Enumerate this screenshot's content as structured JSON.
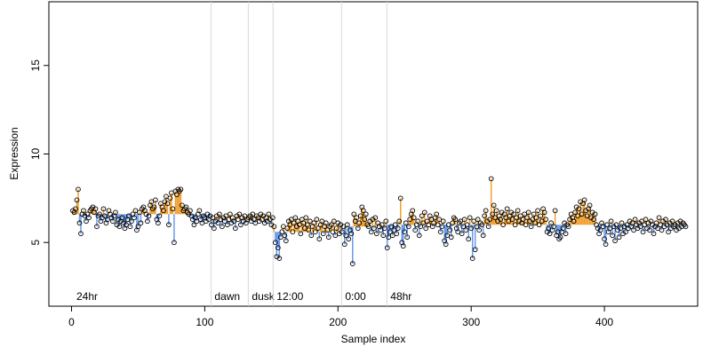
{
  "chart_data": {
    "type": "stem-scatter",
    "x_label": "Sample index",
    "y_label": "Expression",
    "xlim": [
      -17,
      470
    ],
    "ylim": [
      1.4,
      18.6
    ],
    "xticks": [
      0,
      100,
      200,
      300,
      400
    ],
    "yticks": [
      5,
      10,
      15
    ],
    "above_color": "#f0a030",
    "below_color": "#6a9be8",
    "point_color": "#000000",
    "divider_color": "#d9d9d9",
    "segment_label_color": "#a6a6a6",
    "segments": [
      {
        "label": "24hr",
        "start": 1,
        "baseline": 6.6
      },
      {
        "label": "dawn",
        "start": 104.7,
        "baseline": 6.3
      },
      {
        "label": "dusk",
        "start": 132.7,
        "baseline": 6.3
      },
      {
        "label": "12:00",
        "start": 151.3,
        "baseline": 5.6
      },
      {
        "label": "0:00",
        "start": 202.7,
        "baseline": 5.9
      },
      {
        "label": "48hr",
        "start": 236.7,
        "baseline": 6.0
      }
    ],
    "series": [
      {
        "name": "Expression",
        "x": [
          1,
          2,
          3,
          4,
          5,
          6,
          7,
          8,
          9,
          10,
          11,
          12,
          13,
          14,
          15,
          16,
          17,
          18,
          19,
          20,
          21,
          22,
          23,
          24,
          25,
          26,
          27,
          28,
          29,
          30,
          31,
          32,
          33,
          34,
          35,
          36,
          37,
          38,
          39,
          40,
          41,
          42,
          43,
          44,
          45,
          46,
          47,
          48,
          49,
          50,
          51,
          52,
          53,
          54,
          55,
          56,
          57,
          58,
          59,
          60,
          61,
          62,
          63,
          64,
          65,
          66,
          67,
          68,
          69,
          70,
          71,
          72,
          73,
          74,
          75,
          76,
          77,
          78,
          79,
          80,
          81,
          82,
          83,
          84,
          85,
          86,
          87,
          88,
          89,
          90,
          91,
          92,
          93,
          94,
          95,
          96,
          97,
          98,
          99,
          100,
          101,
          102,
          103,
          104,
          105,
          106,
          107,
          108,
          109,
          110,
          111,
          112,
          113,
          114,
          115,
          116,
          117,
          118,
          119,
          120,
          121,
          122,
          123,
          124,
          125,
          126,
          127,
          128,
          129,
          130,
          131,
          132,
          133,
          134,
          135,
          136,
          137,
          138,
          139,
          140,
          141,
          142,
          143,
          144,
          145,
          146,
          147,
          148,
          149,
          150,
          151,
          152,
          153,
          154,
          155,
          156,
          157,
          158,
          159,
          160,
          161,
          162,
          163,
          164,
          165,
          166,
          167,
          168,
          169,
          170,
          171,
          172,
          173,
          174,
          175,
          176,
          177,
          178,
          179,
          180,
          181,
          182,
          183,
          184,
          185,
          186,
          187,
          188,
          189,
          190,
          191,
          192,
          193,
          194,
          195,
          196,
          197,
          198,
          199,
          200,
          201,
          202,
          203,
          204,
          205,
          206,
          207,
          208,
          209,
          210,
          211,
          212,
          213,
          214,
          215,
          216,
          217,
          218,
          219,
          220,
          221,
          222,
          223,
          224,
          225,
          226,
          227,
          228,
          229,
          230,
          231,
          232,
          233,
          234,
          235,
          236,
          237,
          238,
          239,
          240,
          241,
          242,
          243,
          244,
          245,
          246,
          247,
          248,
          249,
          250,
          251,
          252,
          253,
          254,
          255,
          256,
          257,
          258,
          259,
          260,
          261,
          262,
          263,
          264,
          265,
          266,
          267,
          268,
          269,
          270,
          271,
          272,
          273,
          274,
          275,
          276,
          277,
          278,
          279,
          280,
          281,
          282,
          283,
          284,
          285,
          286,
          287,
          288,
          289,
          290,
          291,
          292,
          293,
          294,
          295,
          296,
          297,
          298,
          299,
          300,
          301,
          302,
          303,
          304,
          305,
          306,
          307,
          308,
          309,
          310,
          311,
          312,
          313,
          314,
          315,
          316,
          317,
          318,
          319,
          320,
          321,
          322,
          323,
          324,
          325,
          326,
          327,
          328,
          329,
          330,
          331,
          332,
          333,
          334,
          335,
          336,
          337,
          338,
          339,
          340,
          341,
          342,
          343,
          344,
          345,
          346,
          347,
          348,
          349,
          350,
          351,
          352,
          353,
          354,
          355,
          356,
          357,
          358,
          359,
          360,
          361,
          362,
          363,
          364,
          365,
          366,
          367,
          368,
          369,
          370,
          371,
          372,
          373,
          374,
          375,
          376,
          377,
          378,
          379,
          380,
          381,
          382,
          383,
          384,
          385,
          386,
          387,
          388,
          389,
          390,
          391,
          392,
          393,
          394,
          395,
          396,
          397,
          398,
          399,
          400,
          401,
          402,
          403,
          404,
          405,
          406,
          407,
          408,
          409,
          410,
          411,
          412,
          413,
          414,
          415,
          416,
          417,
          418,
          419,
          420,
          421,
          422,
          423,
          424,
          425,
          426,
          427,
          428,
          429,
          430,
          431,
          432,
          433,
          434,
          435,
          436,
          437,
          438,
          439,
          440,
          441,
          442,
          443,
          444,
          445,
          446,
          447,
          448,
          449,
          450,
          451,
          452,
          453,
          454,
          455,
          456,
          457,
          458,
          459,
          460,
          461
        ],
        "values": [
          6.8,
          6.7,
          6.9,
          7.4,
          8.0,
          6.1,
          5.5,
          6.6,
          6.8,
          6.5,
          6.2,
          6.6,
          6.4,
          6.8,
          6.9,
          7.0,
          6.7,
          6.9,
          5.9,
          6.5,
          6.6,
          6.2,
          6.4,
          6.9,
          6.5,
          6.1,
          6.3,
          6.8,
          6.6,
          6.4,
          6.2,
          6.5,
          6.7,
          6.0,
          6.3,
          5.9,
          6.2,
          6.4,
          6.1,
          5.8,
          6.0,
          6.3,
          6.5,
          5.9,
          6.2,
          6.6,
          6.4,
          6.8,
          5.7,
          5.9,
          6.7,
          6.1,
          6.9,
          7.0,
          6.8,
          6.6,
          6.2,
          6.5,
          7.1,
          7.3,
          6.9,
          7.0,
          7.4,
          6.3,
          6.1,
          6.5,
          7.2,
          7.0,
          6.8,
          7.3,
          7.6,
          7.2,
          6.0,
          7.5,
          7.8,
          6.9,
          5.0,
          7.9,
          7.7,
          8.0,
          7.9,
          8.0,
          7.1,
          6.8,
          6.9,
          7.0,
          6.7,
          6.6,
          6.8,
          6.5,
          6.3,
          6.0,
          6.4,
          6.2,
          6.6,
          6.8,
          6.3,
          6.1,
          6.5,
          6.4,
          6.2,
          6.6,
          6.3,
          6.5,
          6.0,
          6.4,
          5.8,
          6.2,
          6.5,
          6.1,
          6.6,
          6.3,
          5.9,
          6.4,
          6.2,
          6.5,
          6.0,
          6.3,
          6.6,
          6.1,
          6.4,
          6.2,
          5.8,
          6.5,
          6.3,
          6.6,
          6.0,
          6.4,
          6.2,
          6.5,
          6.1,
          6.3,
          6.4,
          6.5,
          6.2,
          6.6,
          6.3,
          6.1,
          6.5,
          6.4,
          6.2,
          6.6,
          6.3,
          6.5,
          6.1,
          6.4,
          6.2,
          6.6,
          6.3,
          6.0,
          6.4,
          5.9,
          5.0,
          4.2,
          4.7,
          4.1,
          5.3,
          5.6,
          5.9,
          5.4,
          5.1,
          5.8,
          6.2,
          6.0,
          6.3,
          5.6,
          6.1,
          6.4,
          5.9,
          6.2,
          6.0,
          5.5,
          6.3,
          6.1,
          5.8,
          6.4,
          6.0,
          5.7,
          6.2,
          5.4,
          5.9,
          6.1,
          5.6,
          6.3,
          5.8,
          5.2,
          6.0,
          6.2,
          5.5,
          5.9,
          6.1,
          5.7,
          5.3,
          5.9,
          6.0,
          5.6,
          6.2,
          5.4,
          5.8,
          6.1,
          5.5,
          6.0,
          5.6,
          5.9,
          4.9,
          5.4,
          6.0,
          5.2,
          5.7,
          5.5,
          3.8,
          6.6,
          6.2,
          6.4,
          5.8,
          6.1,
          6.5,
          7.0,
          6.8,
          6.3,
          6.6,
          6.0,
          5.9,
          6.2,
          5.6,
          6.3,
          5.8,
          6.4,
          5.5,
          6.1,
          5.9,
          5.7,
          6.0,
          5.4,
          5.8,
          6.2,
          4.7,
          5.3,
          5.6,
          5.9,
          5.4,
          5.7,
          6.0,
          5.5,
          5.8,
          6.2,
          7.5,
          5.0,
          4.8,
          5.6,
          6.1,
          5.3,
          5.9,
          6.3,
          6.6,
          6.8,
          6.4,
          5.7,
          6.0,
          6.2,
          5.4,
          5.9,
          6.5,
          6.1,
          6.7,
          5.8,
          6.2,
          6.0,
          6.5,
          6.3,
          5.9,
          6.1,
          6.4,
          6.6,
          6.0,
          6.3,
          5.6,
          5.9,
          6.2,
          5.1,
          4.9,
          5.4,
          6.0,
          5.7,
          5.3,
          6.1,
          6.4,
          6.3,
          5.8,
          5.6,
          6.1,
          6.2,
          5.5,
          5.9,
          6.3,
          5.7,
          6.0,
          5.2,
          6.4,
          5.8,
          4.1,
          6.2,
          4.6,
          5.9,
          6.3,
          5.7,
          6.1,
          6.0,
          5.4,
          6.5,
          6.8,
          6.2,
          5.9,
          6.3,
          8.6,
          6.6,
          7.1,
          6.4,
          6.8,
          6.2,
          6.5,
          6.3,
          6.7,
          6.0,
          6.6,
          6.4,
          6.9,
          6.2,
          6.5,
          6.7,
          6.3,
          6.6,
          6.0,
          6.4,
          6.8,
          6.2,
          6.5,
          6.1,
          6.3,
          6.6,
          6.0,
          6.4,
          6.7,
          6.2,
          5.9,
          6.3,
          6.6,
          6.1,
          6.4,
          6.8,
          6.0,
          6.5,
          6.2,
          6.9,
          6.7,
          6.3,
          5.6,
          5.8,
          5.5,
          6.1,
          5.7,
          5.9,
          6.8,
          5.4,
          5.6,
          5.2,
          5.3,
          5.6,
          5.8,
          6.1,
          5.5,
          6.0,
          5.9,
          6.3,
          6.6,
          6.4,
          6.2,
          6.7,
          7.0,
          6.5,
          6.9,
          7.3,
          6.6,
          7.2,
          7.4,
          6.8,
          6.5,
          6.9,
          7.1,
          6.4,
          6.7,
          6.3,
          6.6,
          6.0,
          5.8,
          5.5,
          5.7,
          6.1,
          5.9,
          5.2,
          4.9,
          6.0,
          5.6,
          5.8,
          6.2,
          5.4,
          5.9,
          5.1,
          6.0,
          5.7,
          5.3,
          5.8,
          6.1,
          5.5,
          5.9,
          5.6,
          6.0,
          5.8,
          6.2,
          5.9,
          6.1,
          5.7,
          6.3,
          6.0,
          5.8,
          6.1,
          5.9,
          6.2,
          5.6,
          6.0,
          6.3,
          5.8,
          6.1,
          5.7,
          6.2,
          6.0,
          5.5,
          5.9,
          6.1,
          5.8,
          6.4,
          6.0,
          5.7,
          6.2,
          5.9,
          6.3,
          6.0,
          5.6,
          6.1,
          5.8,
          6.2,
          5.9,
          6.0,
          5.7,
          6.1,
          5.8,
          6.2,
          5.9,
          6.1,
          6.0,
          5.9
        ]
      }
    ]
  }
}
